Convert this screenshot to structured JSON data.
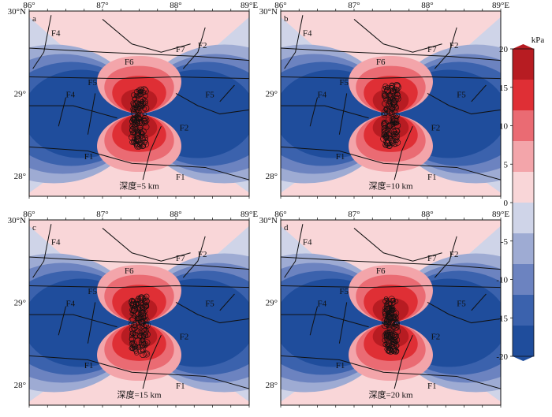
{
  "chart_data": [
    {
      "type": "heatmap",
      "panel": "a",
      "depth_label": "深度=5 km"
    },
    {
      "type": "heatmap",
      "panel": "b",
      "depth_label": "深度=10 km"
    },
    {
      "type": "heatmap",
      "panel": "c",
      "depth_label": "深度=15 km"
    },
    {
      "type": "heatmap",
      "panel": "d",
      "depth_label": "深度=20 km"
    }
  ],
  "axes": {
    "x_ticks": [
      "86°",
      "87°",
      "88°",
      "89°E"
    ],
    "x_values": [
      86,
      87,
      88,
      89
    ],
    "y_ticks": [
      "30°N",
      "29°",
      "28°"
    ],
    "y_values": [
      30,
      29,
      28
    ],
    "xlim": [
      86,
      89
    ],
    "ylim": [
      27.75,
      30
    ]
  },
  "faults": [
    "F1",
    "F2",
    "F4",
    "F5",
    "F6",
    "F7"
  ],
  "colorbar": {
    "unit": "kPa",
    "ticks": [
      "20",
      "15",
      "10",
      "5",
      "0",
      "-5",
      "-10",
      "-15",
      "-20"
    ],
    "values": [
      20,
      15,
      10,
      5,
      0,
      -5,
      -10,
      -15,
      -20
    ],
    "range": [
      -20,
      20
    ],
    "colors": [
      "#1f4d9c",
      "#3b62ad",
      "#6c83c0",
      "#9eabd3",
      "#cfd4e8",
      "#f9d6d8",
      "#f3a5aa",
      "#ea6b73",
      "#df2f35",
      "#b71c22"
    ]
  }
}
